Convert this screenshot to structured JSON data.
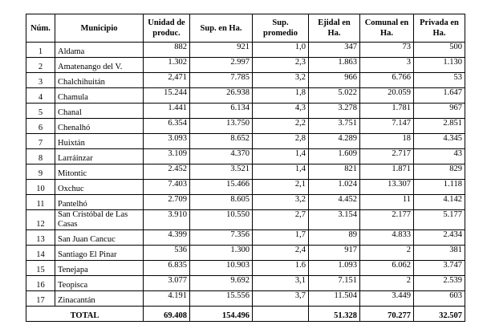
{
  "headers": [
    "Núm.",
    "Municipio",
    "Unidad de produc.",
    "Sup. en Ha.",
    "Sup. promedio",
    "Ejidal en Ha.",
    "Comunal en Ha.",
    "Privada en Ha."
  ],
  "rows": [
    [
      "1",
      "Aldama",
      "882",
      "921",
      "1,0",
      "347",
      "73",
      "500"
    ],
    [
      "2",
      "Amatenango del V.",
      "1.302",
      "2.997",
      "2,3",
      "1.863",
      "3",
      "1.130"
    ],
    [
      "3",
      "Chalchihuitán",
      "2,471",
      "7.785",
      "3,2",
      "966",
      "6.766",
      "53"
    ],
    [
      "4",
      "Chamula",
      "15.244",
      "26.938",
      "1,8",
      "5.022",
      "20.059",
      "1.647"
    ],
    [
      "5",
      "Chanal",
      "1.441",
      "6.134",
      "4,3",
      "3.278",
      "1.781",
      "967"
    ],
    [
      "6",
      "Chenalhó",
      "6.354",
      "13.750",
      "2,2",
      "3.751",
      "7.147",
      "2.851"
    ],
    [
      "7",
      "Huixtán",
      "3.093",
      "8.652",
      "2,8",
      "4.289",
      "18",
      "4.345"
    ],
    [
      "8",
      "Larráinzar",
      "3.109",
      "4.370",
      "1,4",
      "1.609",
      "2.717",
      "43"
    ],
    [
      "9",
      "Mitontic",
      "2.452",
      "3.521",
      "1,4",
      "821",
      "1.871",
      "829"
    ],
    [
      "10",
      "Oxchuc",
      "7.403",
      "15.466",
      "2,1",
      "1.024",
      "13.307",
      "1.118"
    ],
    [
      "11",
      "Pantelhó",
      "2.709",
      "8.605",
      "3,2",
      "4.452",
      "11",
      "4.142"
    ],
    [
      "12",
      "San Cristóbal de Las Casas",
      "3.910",
      "10.550",
      "2,7",
      "3.154",
      "2.177",
      "5.177"
    ],
    [
      "13",
      "San Juan Cancuc",
      "4.399",
      "7.356",
      "1,7",
      "89",
      "4.833",
      "2.434"
    ],
    [
      "14",
      "Santiago El Pinar",
      "536",
      "1.300",
      "2,4",
      "917",
      "2",
      "381"
    ],
    [
      "15",
      "Tenejapa",
      "6.835",
      "10.903",
      "1.6",
      "1.093",
      "6.062",
      "3.747"
    ],
    [
      "16",
      "Teopisca",
      "3.077",
      "9.692",
      "3,1",
      "7.151",
      "2",
      "2.539"
    ],
    [
      "17",
      "Zinacantán",
      "4.191",
      "15.556",
      "3,7",
      "11.504",
      "3.449",
      "603"
    ]
  ],
  "total": {
    "label": "TOTAL",
    "values": [
      "69.408",
      "154.496",
      "",
      "51.328",
      "70.277",
      "32.507"
    ]
  }
}
